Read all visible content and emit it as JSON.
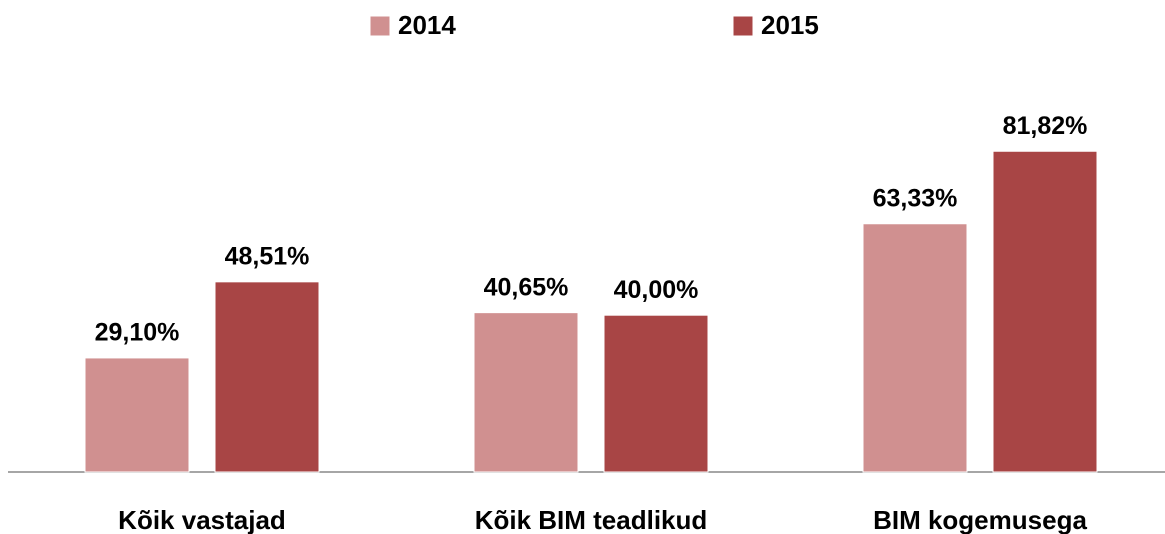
{
  "chart_data": {
    "type": "bar",
    "categories": [
      "Kõik vastajad",
      "Kõik BIM teadlikud",
      "BIM kogemusega"
    ],
    "series": [
      {
        "name": "2014",
        "color": "#d09090",
        "values": [
          29.1,
          40.65,
          63.33
        ],
        "value_labels": [
          "29,10%",
          "40,65%",
          "63,33%"
        ]
      },
      {
        "name": "2015",
        "color": "#a84545",
        "values": [
          48.51,
          40.0,
          81.82
        ],
        "value_labels": [
          "48,51%",
          "40,00%",
          "81,82%"
        ]
      }
    ],
    "ylim": [
      0,
      100
    ],
    "legend": "top"
  }
}
